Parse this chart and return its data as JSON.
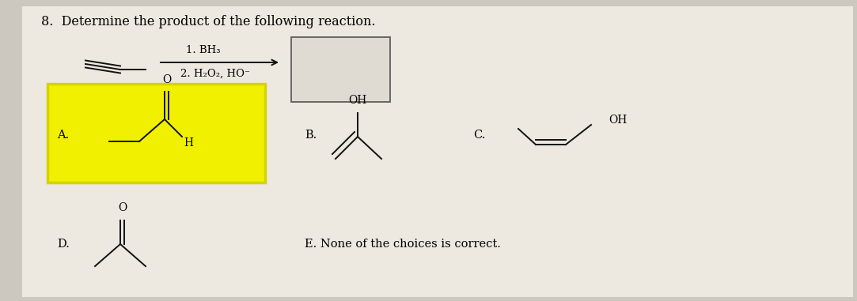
{
  "title": "8.  Determine the product of the following reaction.",
  "background_color": "#ccc8c0",
  "paper_color": "#ede8e0",
  "highlight_color": "#f0f000",
  "highlight_edge": "#d4d400",
  "step1": "1. BH₃",
  "step2": "2. H₂O₂, HO⁻",
  "label_A": "A.",
  "label_B": "B.",
  "label_C": "C.",
  "label_D": "D.",
  "label_E": "E. None of the choices is correct.",
  "answer_box_color": "#e0dbd2",
  "bond_color": "#111111",
  "lw": 1.4
}
